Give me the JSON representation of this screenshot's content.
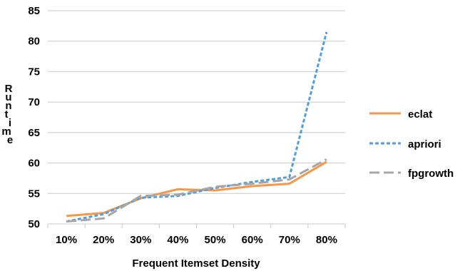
{
  "chart_data": {
    "type": "line",
    "title": "",
    "xlabel": "Frequent Itemset Density",
    "ylabel": "Runtime",
    "categories": [
      "10%",
      "20%",
      "30%",
      "40%",
      "50%",
      "60%",
      "70%",
      "80%"
    ],
    "ylim": [
      50,
      85
    ],
    "yticks": [
      50,
      55,
      60,
      65,
      70,
      75,
      80,
      85
    ],
    "grid": true,
    "legend_position": "right",
    "series": [
      {
        "name": "eclat",
        "values": [
          51.3,
          51.8,
          54.2,
          55.7,
          55.5,
          56.2,
          56.6,
          60.2
        ],
        "color": "#f79646",
        "dash": "solid"
      },
      {
        "name": "apriori",
        "values": [
          50.4,
          51.6,
          54.3,
          54.6,
          55.9,
          56.9,
          57.7,
          81.5
        ],
        "color": "#4f9edf",
        "dash": "dotted"
      },
      {
        "name": "fpgrowth",
        "values": [
          50.4,
          50.9,
          54.6,
          54.8,
          56.1,
          56.6,
          57.3,
          60.6
        ],
        "color": "#a6a6a6",
        "dash": "dashed"
      }
    ]
  }
}
